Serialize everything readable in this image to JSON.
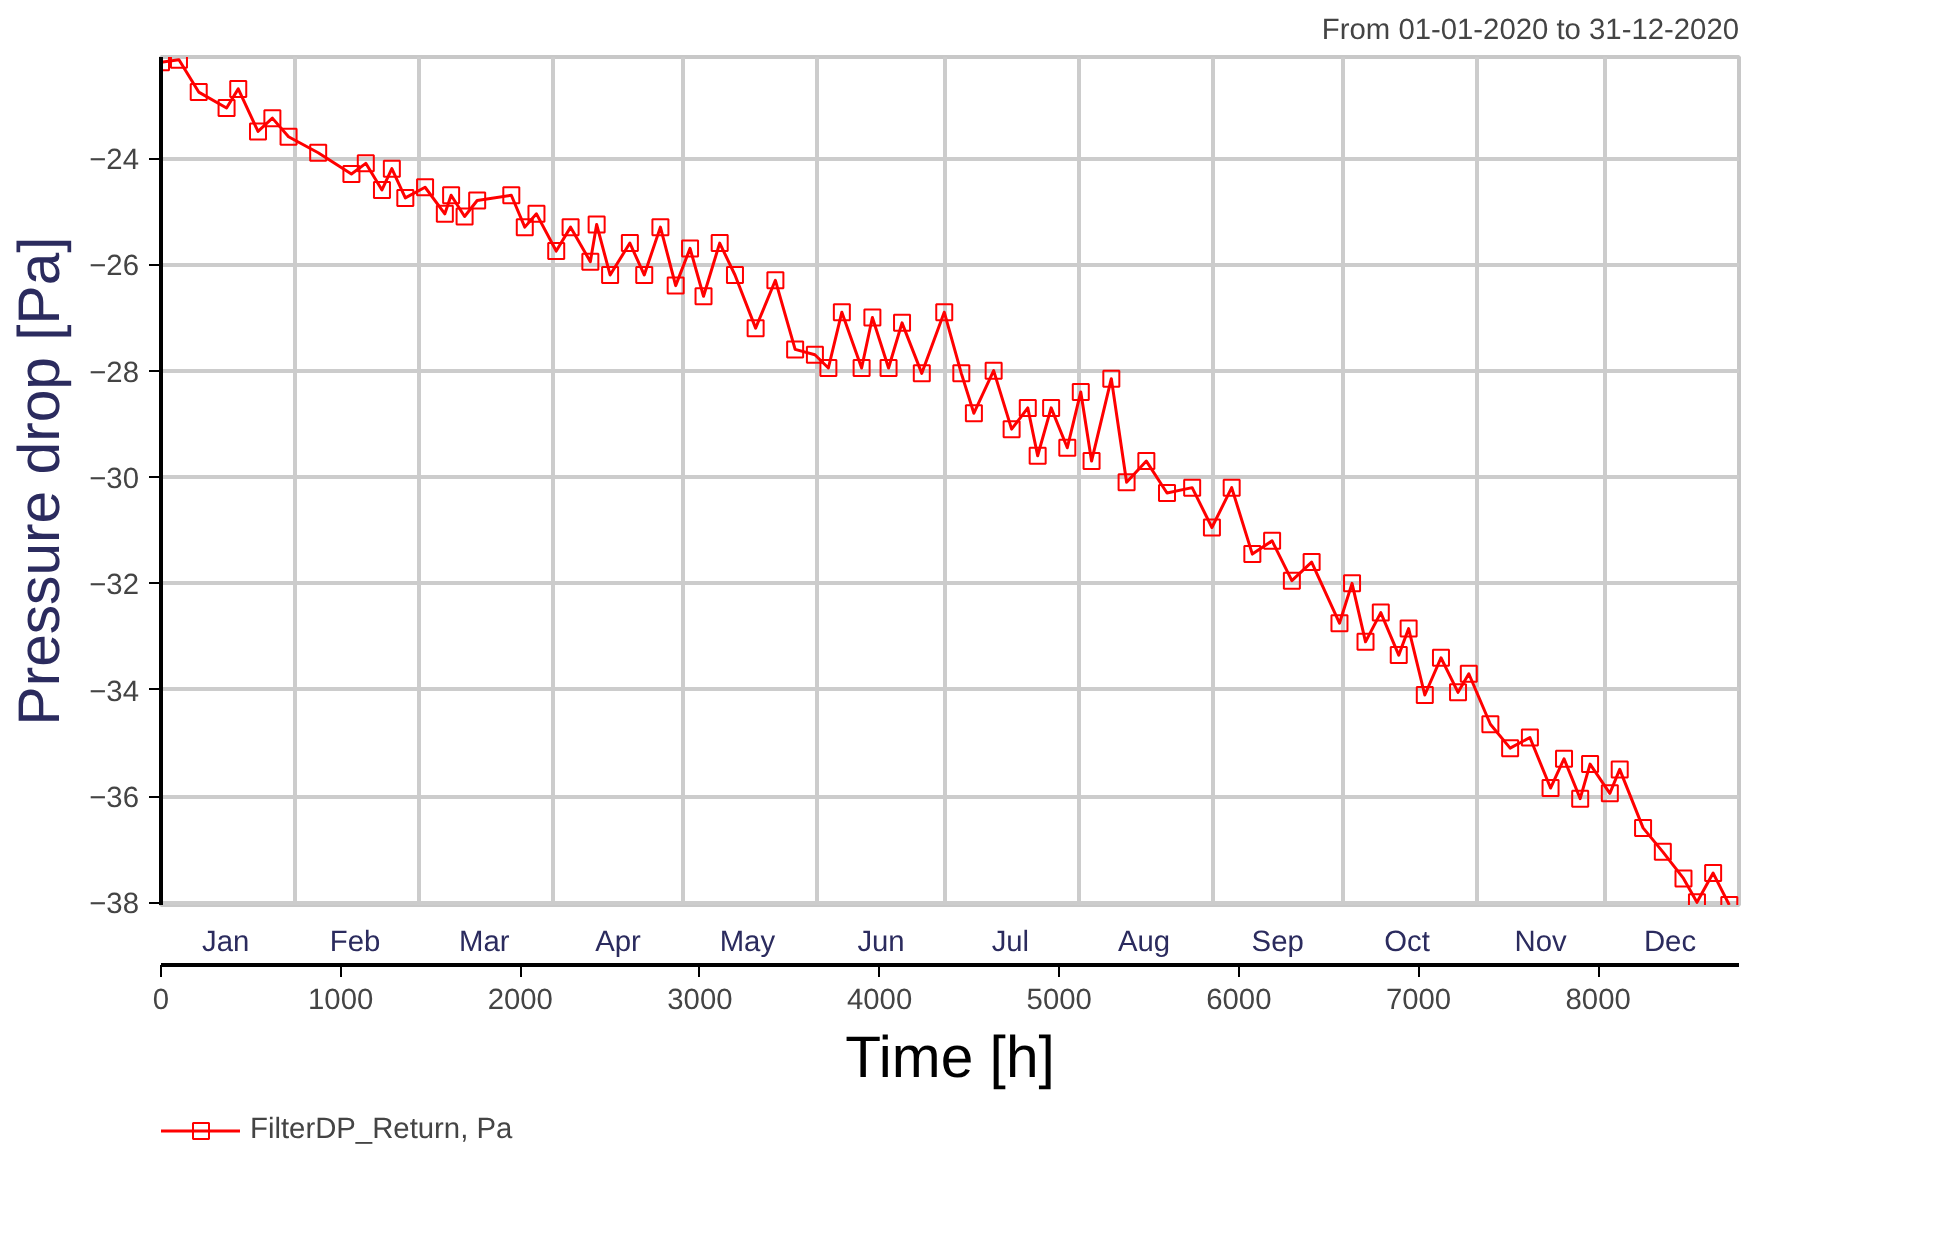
{
  "chart_data": {
    "type": "line",
    "title": "From 01-01-2020 to 31-12-2020",
    "xlabel": "Time [h]",
    "ylabel": "Pressure drop [Pa]",
    "x": [
      0,
      100,
      210,
      365,
      430,
      540,
      620,
      710,
      875,
      1060,
      1140,
      1230,
      1285,
      1360,
      1470,
      1580,
      1615,
      1690,
      1760,
      1950,
      2025,
      2090,
      2200,
      2280,
      2390,
      2425,
      2500,
      2610,
      2690,
      2780,
      2865,
      2945,
      3020,
      3110,
      3195,
      3310,
      3420,
      3530,
      3640,
      3715,
      3790,
      3900,
      3960,
      4050,
      4125,
      4235,
      4360,
      4455,
      4525,
      4635,
      4735,
      4825,
      4880,
      4955,
      5045,
      5120,
      5180,
      5290,
      5375,
      5485,
      5600,
      5740,
      5850,
      5960,
      6075,
      6185,
      6295,
      6405,
      6560,
      6630,
      6705,
      6790,
      6890,
      6945,
      7035,
      7125,
      7220,
      7280,
      7400,
      7510,
      7620,
      7735,
      7810,
      7900,
      7955,
      8065,
      8120,
      8250,
      8360,
      8475,
      8550,
      8640,
      8730
    ],
    "series": [
      {
        "name": "FilterDP_Return, Pa",
        "color": "#ff0000",
        "values": [
          -22.2,
          -22.15,
          -22.76,
          -23.06,
          -22.7,
          -23.5,
          -23.25,
          -23.6,
          -23.9,
          -24.3,
          -24.1,
          -24.6,
          -24.2,
          -24.75,
          -24.55,
          -25.05,
          -24.7,
          -25.1,
          -24.8,
          -24.7,
          -25.3,
          -25.05,
          -25.75,
          -25.3,
          -25.95,
          -25.25,
          -26.2,
          -25.6,
          -26.2,
          -25.3,
          -26.4,
          -25.7,
          -26.6,
          -25.6,
          -26.2,
          -27.2,
          -26.3,
          -27.6,
          -27.7,
          -27.95,
          -26.9,
          -27.95,
          -27.0,
          -27.95,
          -27.1,
          -28.05,
          -26.9,
          -28.05,
          -28.8,
          -28.0,
          -29.1,
          -28.7,
          -29.6,
          -28.7,
          -29.45,
          -28.4,
          -29.7,
          -28.15,
          -30.1,
          -29.7,
          -30.3,
          -30.2,
          -30.95,
          -30.2,
          -31.45,
          -31.2,
          -31.95,
          -31.6,
          -32.75,
          -32.0,
          -33.1,
          -32.55,
          -33.35,
          -32.85,
          -34.1,
          -33.4,
          -34.05,
          -33.7,
          -34.65,
          -35.1,
          -34.9,
          -35.85,
          -35.3,
          -36.05,
          -35.4,
          -35.95,
          -35.5,
          -36.6,
          -37.05,
          -37.55,
          -38.0,
          -37.45,
          -38.05
        ]
      }
    ],
    "xlim": [
      0,
      8784
    ],
    "ylim": [
      -38.05,
      -22.1
    ],
    "xticks": [
      0,
      1000,
      2000,
      3000,
      4000,
      5000,
      6000,
      7000,
      8000
    ],
    "x2lim": [
      "2020-01-01",
      "2021-01-01"
    ],
    "x2ticks": [
      {
        "value": "2020-01-16",
        "label": "Jan"
      },
      {
        "value": "2020-02-01",
        "label": null
      },
      {
        "value": "2020-02-15",
        "label": "Feb"
      },
      {
        "value": "2020-03-01",
        "label": null
      },
      {
        "value": "2020-03-16",
        "label": "Mar"
      },
      {
        "value": "2020-04-01",
        "label": null
      },
      {
        "value": "2020-04-16",
        "label": "Apr"
      },
      {
        "value": "2020-05-01",
        "label": null
      },
      {
        "value": "2020-05-16",
        "label": "May"
      },
      {
        "value": "2020-06-01",
        "label": null
      },
      {
        "value": "2020-06-16",
        "label": "Jun"
      },
      {
        "value": "2020-07-01",
        "label": null
      },
      {
        "value": "2020-07-16",
        "label": "Jul"
      },
      {
        "value": "2020-08-01",
        "label": null
      },
      {
        "value": "2020-08-16",
        "label": "Aug"
      },
      {
        "value": "2020-09-01",
        "label": null
      },
      {
        "value": "2020-09-16",
        "label": "Sep"
      },
      {
        "value": "2020-10-01",
        "label": null
      },
      {
        "value": "2020-10-16",
        "label": "Oct"
      },
      {
        "value": "2020-11-01",
        "label": null
      },
      {
        "value": "2020-11-16",
        "label": "Nov"
      },
      {
        "value": "2020-12-01",
        "label": null
      },
      {
        "value": "2020-12-16",
        "label": "Dec"
      }
    ],
    "yticks": [
      -24,
      -26,
      -28,
      -30,
      -32,
      -34,
      -36,
      -38
    ],
    "grid": true,
    "legend": "bottom left",
    "marker": "square",
    "line_style": "solid"
  }
}
